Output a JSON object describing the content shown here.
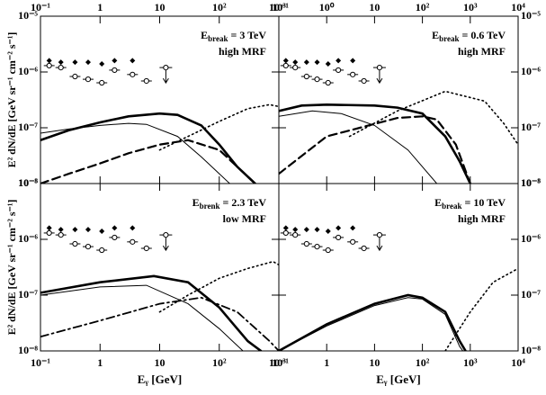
{
  "chart_data": [
    {
      "type": "line",
      "xlog": true,
      "ylog": true,
      "annotation": {
        "symbol": "E",
        "subscript": "break",
        "text": " = 3 TeV",
        "note": "high MRF"
      },
      "ylabel": "E² dN/dE [GeV sr⁻¹ cm⁻² s⁻¹]",
      "tick_labels": [
        "top",
        "left"
      ],
      "xlim": [
        0.1,
        1000
      ],
      "ylim": [
        1e-08,
        1e-05
      ],
      "xticks": [
        {
          "value": 0.1,
          "label": "10⁻¹"
        },
        1,
        10,
        {
          "value": 100,
          "label": "10²"
        },
        {
          "value": 1000,
          "label": "10³"
        }
      ],
      "yticks": [
        {
          "value": 1e-08,
          "label": "10⁻⁸"
        },
        {
          "value": 1e-07,
          "label": "10⁻⁷"
        },
        {
          "value": 1e-06,
          "label": "10⁻⁶"
        },
        {
          "value": 1e-05,
          "label": "10⁻⁵"
        }
      ],
      "series": [
        {
          "style": "thick",
          "color": "#000",
          "x": [
            0.1,
            0.3,
            1,
            3,
            10,
            20,
            50,
            100,
            200,
            400
          ],
          "values": [
            6e-08,
            9e-08,
            1.25e-07,
            1.6e-07,
            1.8e-07,
            1.7e-07,
            1.1e-07,
            5e-08,
            2e-08,
            1e-08
          ]
        },
        {
          "style": "thin",
          "color": "#000",
          "x": [
            0.1,
            0.3,
            1,
            3,
            6,
            20,
            50,
            100,
            150
          ],
          "values": [
            8e-08,
            9.5e-08,
            1.1e-07,
            1.2e-07,
            1.15e-07,
            7e-08,
            3e-08,
            1.5e-08,
            1e-08
          ]
        },
        {
          "style": "dashed",
          "color": "#000",
          "x": [
            0.1,
            0.3,
            1,
            3,
            10,
            30,
            100,
            200,
            400
          ],
          "values": [
            1e-08,
            1.5e-08,
            2.3e-08,
            3.5e-08,
            5e-08,
            6e-08,
            4e-08,
            2e-08,
            1e-08
          ]
        },
        {
          "style": "dotted",
          "color": "#000",
          "x": [
            10,
            30,
            100,
            300,
            700,
            1000
          ],
          "values": [
            4e-08,
            7e-08,
            1.3e-07,
            2.2e-07,
            2.6e-07,
            2.4e-07
          ]
        }
      ],
      "points": {
        "x": [
          0.14,
          0.22,
          0.38,
          0.63,
          1.07,
          1.75,
          3.5,
          6
        ],
        "values": [
          1.3e-06,
          1.2e-06,
          8.3e-07,
          7.4e-07,
          6.4e-07,
          1.08e-06,
          9e-07,
          6.9e-07
        ]
      },
      "limit": {
        "x": 12.7,
        "value": 1.2e-06
      },
      "diamonds": {
        "x": [
          0.14,
          0.22,
          0.38,
          0.63,
          1.07,
          1.75,
          3.5
        ],
        "values": [
          1.6e-06,
          1.5e-06,
          1.5e-06,
          1.5e-06,
          1.4e-06,
          1.6e-06,
          1.6e-06
        ]
      }
    },
    {
      "type": "line",
      "xlog": true,
      "ylog": true,
      "annotation": {
        "symbol": "E",
        "subscript": "break",
        "text": " = 0.6 TeV",
        "note": "high MRF"
      },
      "tick_labels": [
        "top",
        "right"
      ],
      "xlim": [
        0.1,
        10000
      ],
      "ylim": [
        1e-08,
        1e-05
      ],
      "xticks": [
        {
          "value": 0.1,
          "label": "10⁻¹"
        },
        {
          "value": 1,
          "label": "10⁰"
        },
        10,
        {
          "value": 100,
          "label": "10²"
        },
        {
          "value": 1000,
          "label": "10³"
        },
        {
          "value": 10000,
          "label": "10⁴"
        }
      ],
      "yticks": [
        {
          "value": 1e-08,
          "label": "10⁻⁸"
        },
        {
          "value": 1e-07,
          "label": "10⁻⁷"
        },
        {
          "value": 1e-06,
          "label": "10⁻⁶"
        },
        {
          "value": 1e-05,
          "label": "10⁻⁵"
        }
      ],
      "series": [
        {
          "style": "thick",
          "color": "#000",
          "x": [
            0.1,
            0.3,
            1,
            10,
            30,
            100,
            300,
            600,
            1000
          ],
          "values": [
            2e-07,
            2.5e-07,
            2.6e-07,
            2.5e-07,
            2.3e-07,
            1.8e-07,
            7e-08,
            2.5e-08,
            1e-08
          ]
        },
        {
          "style": "thin",
          "color": "#000",
          "x": [
            0.1,
            0.5,
            2,
            10,
            50,
            200
          ],
          "values": [
            1.6e-07,
            2e-07,
            1.8e-07,
            1.1e-07,
            4e-08,
            1e-08
          ]
        },
        {
          "style": "dashed",
          "color": "#000",
          "x": [
            0.1,
            1,
            30,
            100,
            200,
            500,
            1000
          ],
          "values": [
            1.5e-08,
            7e-08,
            1.5e-07,
            1.6e-07,
            1.4e-07,
            5e-08,
            1e-08
          ]
        },
        {
          "style": "dotted",
          "color": "#000",
          "x": [
            3,
            30,
            300,
            2000,
            5000,
            10000
          ],
          "values": [
            7e-08,
            2e-07,
            4.5e-07,
            3e-07,
            1.2e-07,
            5e-08
          ]
        }
      ],
      "points": {
        "x": [
          0.14,
          0.22,
          0.38,
          0.63,
          1.07,
          1.75,
          3.5,
          6
        ],
        "values": [
          1.3e-06,
          1.2e-06,
          8.3e-07,
          7.4e-07,
          6.4e-07,
          1.08e-06,
          9e-07,
          6.9e-07
        ]
      },
      "limit": {
        "x": 12.7,
        "value": 1.2e-06
      },
      "diamonds": {
        "x": [
          0.14,
          0.22,
          0.38,
          0.63,
          1.07,
          1.75,
          3.5
        ],
        "values": [
          1.6e-06,
          1.5e-06,
          1.5e-06,
          1.5e-06,
          1.4e-06,
          1.6e-06,
          1.6e-06
        ]
      }
    },
    {
      "type": "line",
      "xlog": true,
      "ylog": true,
      "annotation": {
        "symbol": "E",
        "subscript": "brenk",
        "text": " = 2.3 TeV",
        "note": "low MRF"
      },
      "ylabel": "E² dN/dE [GeV sr⁻¹ cm⁻² s⁻¹]",
      "xlabel": "Eᵧ [GeV]",
      "tick_labels": [
        "bottom",
        "left"
      ],
      "xlim": [
        0.1,
        1000
      ],
      "ylim": [
        1e-08,
        1e-05
      ],
      "xticks": [
        {
          "value": 0.1,
          "label": "10⁻¹"
        },
        1,
        10,
        {
          "value": 100,
          "label": "10²"
        },
        {
          "value": 1000,
          "label": "10³"
        }
      ],
      "yticks": [
        {
          "value": 1e-08,
          "label": "10⁻⁸"
        },
        {
          "value": 1e-07,
          "label": "10⁻⁷"
        },
        {
          "value": 1e-06,
          "label": "10⁻⁶"
        },
        {
          "value": 1e-05,
          "label": "10⁻⁵"
        }
      ],
      "series": [
        {
          "style": "thick",
          "color": "#000",
          "x": [
            0.1,
            1,
            8,
            30,
            100,
            300,
            500
          ],
          "values": [
            1.1e-07,
            1.7e-07,
            2.2e-07,
            1.7e-07,
            6e-08,
            1.5e-08,
            1e-08
          ]
        },
        {
          "style": "thin",
          "color": "#000",
          "x": [
            0.1,
            1,
            6,
            30,
            100,
            250
          ],
          "values": [
            1e-07,
            1.4e-07,
            1.5e-07,
            7e-08,
            2.5e-08,
            1e-08
          ]
        },
        {
          "style": "dashdot",
          "color": "#000",
          "x": [
            0.1,
            1,
            10,
            50,
            200,
            700,
            1000
          ],
          "values": [
            1.8e-08,
            3.5e-08,
            7e-08,
            9e-08,
            5e-08,
            1.5e-08,
            1e-08
          ]
        },
        {
          "style": "dotted",
          "color": "#000",
          "x": [
            10,
            30,
            100,
            300,
            800,
            1000
          ],
          "values": [
            5e-08,
            1e-07,
            2e-07,
            3e-07,
            4e-07,
            3.5e-07
          ]
        }
      ],
      "points": {
        "x": [
          0.14,
          0.22,
          0.38,
          0.63,
          1.07,
          1.75,
          3.5,
          6
        ],
        "values": [
          1.3e-06,
          1.2e-06,
          8.3e-07,
          7.4e-07,
          6.4e-07,
          1.08e-06,
          9e-07,
          6.9e-07
        ]
      },
      "limit": {
        "x": 12.7,
        "value": 1.2e-06
      },
      "diamonds": {
        "x": [
          0.14,
          0.22,
          0.38,
          0.63,
          1.07,
          1.75,
          3.5
        ],
        "values": [
          1.6e-06,
          1.5e-06,
          1.5e-06,
          1.5e-06,
          1.4e-06,
          1.6e-06,
          1.6e-06
        ]
      }
    },
    {
      "type": "line",
      "xlog": true,
      "ylog": true,
      "annotation": {
        "symbol": "E",
        "subscript": "break",
        "text": " = 10 TeV",
        "note": "high MRF"
      },
      "xlabel": "Eᵧ [GeV]",
      "tick_labels": [
        "bottom",
        "right"
      ],
      "xlim": [
        0.1,
        10000
      ],
      "ylim": [
        1e-08,
        1e-05
      ],
      "xticks": [
        {
          "value": 0.1,
          "label": "10⁻¹"
        },
        1,
        10,
        {
          "value": 100,
          "label": "10²"
        },
        {
          "value": 1000,
          "label": "10³"
        },
        {
          "value": 10000,
          "label": "10⁴"
        }
      ],
      "yticks": [
        {
          "value": 1e-08,
          "label": "10⁻⁸"
        },
        {
          "value": 1e-07,
          "label": "10⁻⁷"
        },
        {
          "value": 1e-06,
          "label": "10⁻⁶"
        },
        {
          "value": 1e-05,
          "label": "10⁻⁵"
        }
      ],
      "series": [
        {
          "style": "thick",
          "color": "#000",
          "x": [
            0.1,
            1,
            10,
            50,
            100,
            300,
            600,
            800
          ],
          "values": [
            1e-08,
            3e-08,
            7e-08,
            1e-07,
            9e-08,
            5e-08,
            1.5e-08,
            1e-08
          ]
        },
        {
          "style": "thin",
          "color": "#000",
          "x": [
            0.1,
            1,
            10,
            50,
            100,
            300,
            600,
            700
          ],
          "values": [
            1e-08,
            2.8e-08,
            6.5e-08,
            9e-08,
            8.5e-08,
            4.5e-08,
            1.2e-08,
            1e-08
          ]
        },
        {
          "style": "dotted",
          "color": "#000",
          "x": [
            300,
            1000,
            3000,
            10000
          ],
          "values": [
            1e-08,
            5e-08,
            1.7e-07,
            3e-07
          ]
        }
      ],
      "points": {
        "x": [
          0.14,
          0.22,
          0.38,
          0.63,
          1.07,
          1.75,
          3.5,
          6
        ],
        "values": [
          1.3e-06,
          1.2e-06,
          8.3e-07,
          7.4e-07,
          6.4e-07,
          1.08e-06,
          9e-07,
          6.9e-07
        ]
      },
      "limit": {
        "x": 12.7,
        "value": 1.2e-06
      },
      "diamonds": {
        "x": [
          0.14,
          0.22,
          0.38,
          0.63,
          1.07,
          1.75,
          3.5
        ],
        "values": [
          1.6e-06,
          1.5e-06,
          1.5e-06,
          1.5e-06,
          1.4e-06,
          1.6e-06,
          1.6e-06
        ]
      }
    }
  ]
}
